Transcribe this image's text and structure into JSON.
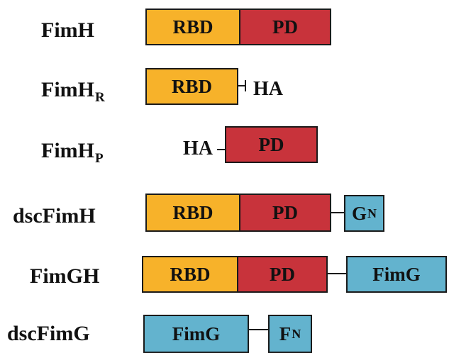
{
  "rows": [
    {
      "label": "FimH",
      "domains": [
        "RBD",
        "PD"
      ]
    },
    {
      "label": "FimH",
      "sub": "R",
      "domains": [
        "RBD"
      ],
      "tag": "HA"
    },
    {
      "label": "FimH",
      "sub": "P",
      "domains": [
        "PD"
      ],
      "tag": "HA"
    },
    {
      "label": "dscFimH",
      "domains": [
        "RBD",
        "PD"
      ],
      "extra": "G",
      "extra_sub": "N"
    },
    {
      "label": "FimGH",
      "domains": [
        "RBD",
        "PD"
      ],
      "extra": "FimG"
    },
    {
      "label": "dscFimG",
      "domains": [
        "FimG"
      ],
      "extra": "F",
      "extra_sub": "N"
    }
  ],
  "colors": {
    "rbd": "#f7b22a",
    "pd": "#c8333b",
    "fimg": "#63b3ce",
    "outline": "#1a1a1a"
  }
}
